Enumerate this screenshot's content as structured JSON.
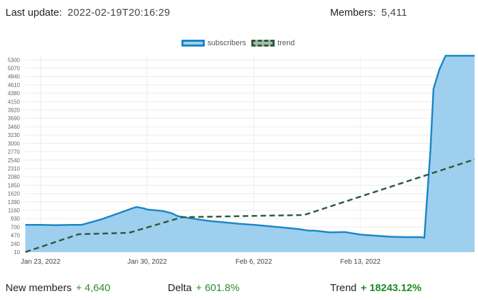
{
  "header": {
    "last_update_label": "Last update:",
    "last_update_value": "2022-02-19T20:16:29",
    "members_label": "Members:",
    "members_value": "5,411"
  },
  "footer": {
    "new_members_label": "New members",
    "new_members_value": "+ 4,640",
    "delta_label": "Delta",
    "delta_value": "+ 601.8%",
    "trend_label": "Trend",
    "trend_value": "+ 18243.12%"
  },
  "colors": {
    "subscribers_fill": "#9fcfee",
    "subscribers_line": "#1a86c6",
    "trend_line": "#2d5a3a",
    "positive": "#2e8b2e"
  },
  "chart_data": {
    "type": "area",
    "legend_position": "top-center",
    "grid": true,
    "ylim": [
      10,
      5400
    ],
    "yticks": [
      10,
      240,
      470,
      700,
      930,
      1160,
      1390,
      1620,
      1850,
      2080,
      2310,
      2540,
      2770,
      3000,
      3230,
      3460,
      3690,
      3920,
      4150,
      4380,
      4610,
      4840,
      5070,
      5300
    ],
    "xlim": [
      0,
      29.5
    ],
    "xticks": [
      {
        "x": 1,
        "label": "Jan 23, 2022"
      },
      {
        "x": 8,
        "label": "Jan 30, 2022"
      },
      {
        "x": 15,
        "label": "Feb 6, 2022"
      },
      {
        "x": 22,
        "label": "Feb 13, 2022"
      }
    ],
    "series": [
      {
        "name": "subscribers",
        "style": "area",
        "x": [
          0,
          1,
          2,
          3,
          3.7,
          5,
          6,
          7,
          7.3,
          7.8,
          8,
          9,
          9.6,
          10,
          11,
          12,
          13,
          14,
          15,
          16,
          17,
          18,
          18.6,
          19,
          20,
          21,
          22,
          23,
          24,
          25,
          26,
          26.2,
          26.6,
          26.8,
          27.2,
          27.6,
          29.5
        ],
        "y": [
          760,
          760,
          750,
          760,
          760,
          910,
          1060,
          1210,
          1250,
          1210,
          1180,
          1140,
          1080,
          1000,
          930,
          870,
          830,
          790,
          760,
          720,
          680,
          640,
          600,
          600,
          550,
          560,
          490,
          460,
          430,
          420,
          420,
          400,
          2800,
          4500,
          5050,
          5411,
          5411
        ]
      },
      {
        "name": "trend",
        "style": "dashed",
        "x": [
          0,
          3.5,
          6.8,
          10.3,
          18.3,
          29.5
        ],
        "y": [
          10,
          500,
          540,
          970,
          1030,
          2560
        ]
      }
    ]
  }
}
